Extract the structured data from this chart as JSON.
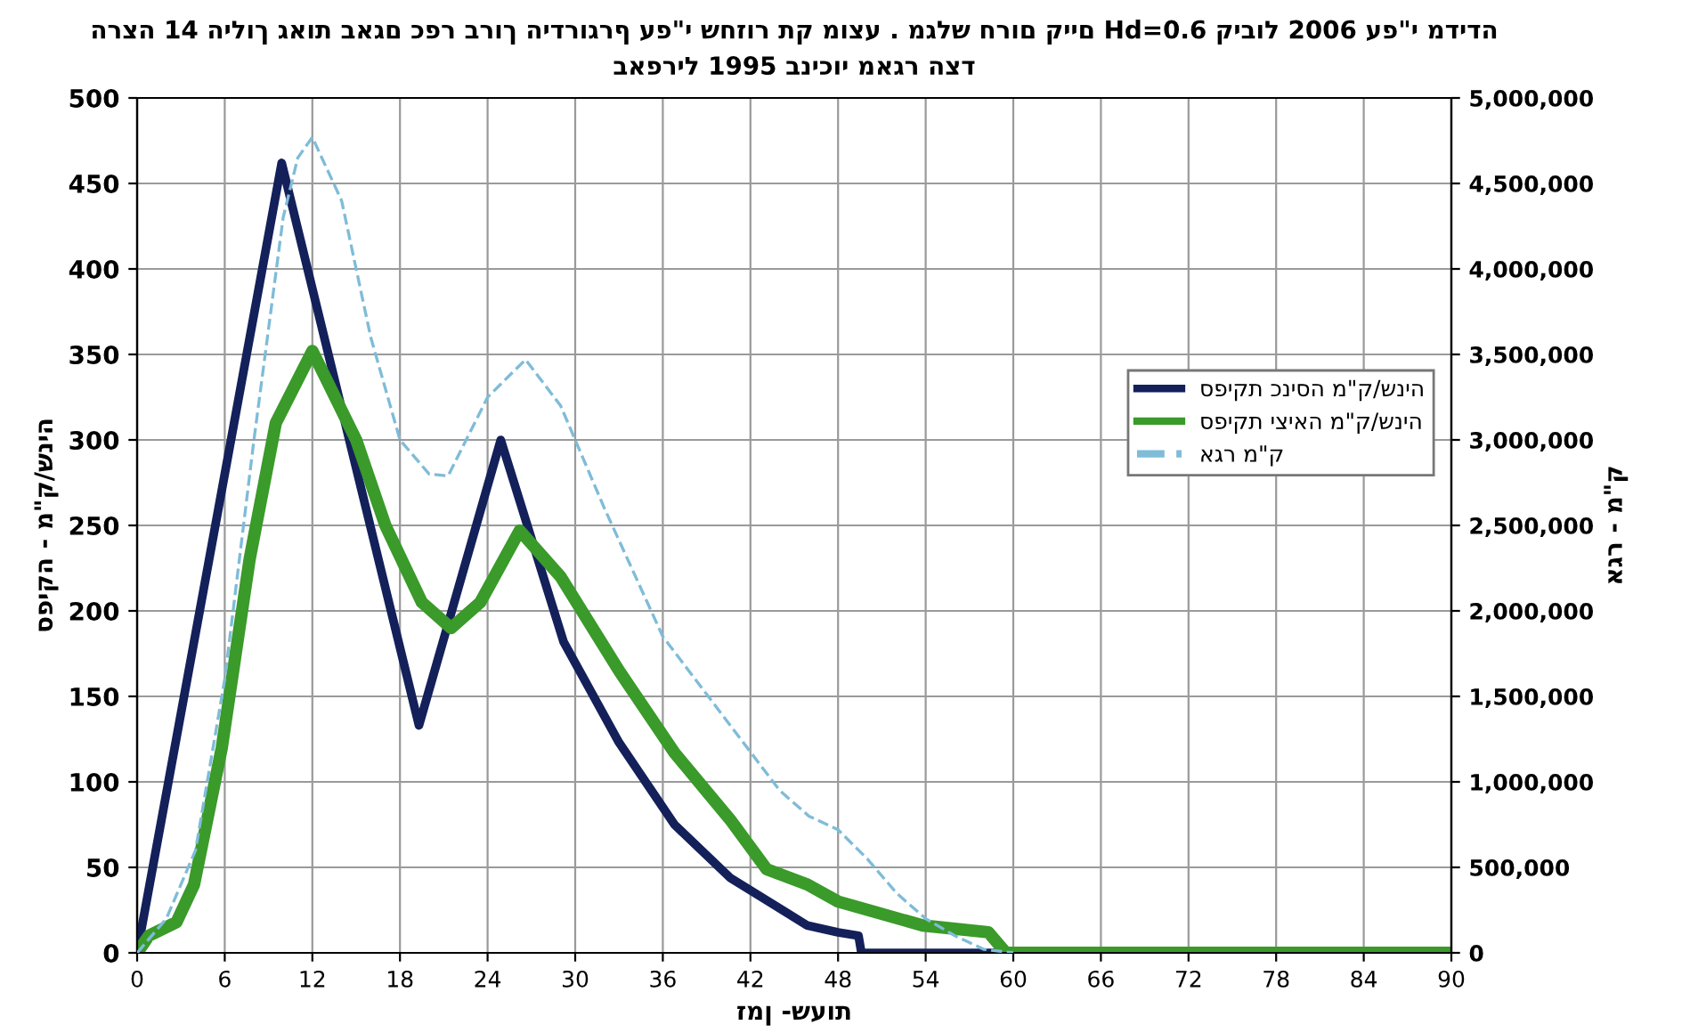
{
  "chart_data": {
    "type": "line",
    "title": "הרצה 14 הילוך גאות באגם כפר ברוך הידרוגרף עפ\"י שחזור תק מוצע . מגלש חרום קיים Hd=0.6 קיבול 2006 עפ\"י מדידה",
    "subtitle": "באפריל 1995 בניכוי מאגר הצד",
    "xlabel": "זמן -שעות",
    "ylabel": "ספיקה - מ\"ק/שניה",
    "y2label": "אגר - מ\"ק",
    "xlim": [
      0,
      90
    ],
    "xticks": [
      0,
      6,
      12,
      18,
      24,
      30,
      36,
      42,
      48,
      54,
      60,
      66,
      72,
      78,
      84,
      90
    ],
    "ylim": [
      0,
      500
    ],
    "yticks": [
      0,
      50,
      100,
      150,
      200,
      250,
      300,
      350,
      400,
      450,
      500
    ],
    "y2lim": [
      0,
      5000000
    ],
    "y2ticks": [
      {
        "value": 0,
        "label": "0"
      },
      {
        "value": 500000,
        "label": "500,000"
      },
      {
        "value": 1000000,
        "label": "1,000,000"
      },
      {
        "value": 1500000,
        "label": "1,500,000"
      },
      {
        "value": 2000000,
        "label": "2,000,000"
      },
      {
        "value": 2500000,
        "label": "2,500,000"
      },
      {
        "value": 3000000,
        "label": "3,000,000"
      },
      {
        "value": 3500000,
        "label": "3,500,000"
      },
      {
        "value": 4000000,
        "label": "4,000,000"
      },
      {
        "value": 4500000,
        "label": "4,500,000"
      },
      {
        "value": 5000000,
        "label": "5,000,000"
      }
    ],
    "grid": true,
    "legend": "right",
    "series": [
      {
        "name": "ספיקת כניסה מ\"ק/שניה",
        "color": "#14205a",
        "line_style": "solid",
        "x": [
          0,
          9.9,
          19.3,
          24.9,
          29.2,
          33,
          36.8,
          40.6,
          45.9,
          48,
          49.4,
          49.6,
          59
        ],
        "values": [
          0,
          462,
          133,
          300,
          182,
          123,
          75,
          44,
          16,
          12,
          10,
          0,
          0
        ]
      },
      {
        "name": "ספיקת יציאה מ\"ק/שניה",
        "color": "#3a9a2a",
        "line_style": "solid",
        "x": [
          0,
          0.8,
          2.7,
          3.9,
          5.8,
          7.7,
          9.5,
          12,
          15,
          17,
          19.5,
          21.5,
          23.5,
          26.2,
          29,
          33,
          36.8,
          40.6,
          43.1,
          45.9,
          48,
          53.8,
          58.3,
          59.5,
          60,
          66,
          72,
          78,
          84,
          90
        ],
        "values": [
          0,
          10,
          18,
          40,
          120,
          230,
          310,
          352,
          300,
          250,
          205,
          190,
          205,
          247,
          220,
          165,
          117,
          78,
          49,
          40,
          30,
          16,
          12,
          0,
          0,
          0,
          0,
          0,
          0,
          0
        ]
      },
      {
        "name": "אגר מ\"ק",
        "color": "#7fbcd8",
        "line_style": "dashed",
        "axis": "y2",
        "x": [
          0,
          2,
          4,
          6,
          8,
          10,
          11,
          12,
          14,
          16,
          18,
          20,
          21.3,
          24,
          26.6,
          29,
          32,
          36,
          40,
          44,
          46,
          48,
          50,
          52,
          54,
          56,
          58,
          60
        ],
        "values": [
          0,
          200000,
          600000,
          1600000,
          3000000,
          4300000,
          4650000,
          4770000,
          4400000,
          3600000,
          3000000,
          2800000,
          2790000,
          3250000,
          3470000,
          3200000,
          2600000,
          1850000,
          1400000,
          950000,
          800000,
          720000,
          550000,
          350000,
          200000,
          100000,
          20000,
          0
        ]
      }
    ]
  }
}
